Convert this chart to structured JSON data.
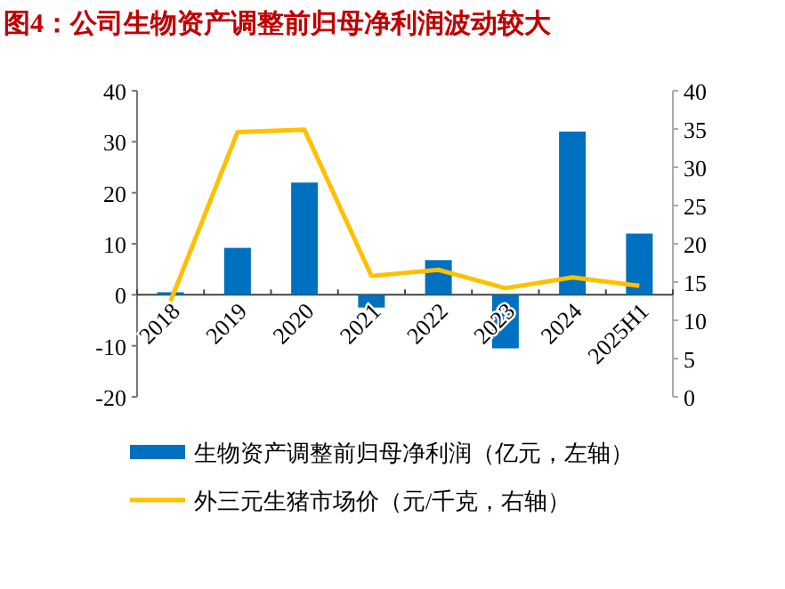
{
  "chart_data": {
    "type": "bar",
    "title": "图4：公司生物资产调整前归母净利润波动较大",
    "categories": [
      "2018",
      "2019",
      "2020",
      "2021",
      "2022",
      "2023",
      "2024",
      "2025H1"
    ],
    "series": [
      {
        "name": "生物资产调整前归母净利润（亿元，左轴）",
        "color": "#0070c0",
        "values": [
          0.5,
          9.2,
          22,
          -2.5,
          6.8,
          -10.5,
          32,
          12
        ]
      },
      {
        "name": "外三元生猪市场价（元/千克，右轴）",
        "type": "line",
        "axis": "y2",
        "color": "#ffc000",
        "values": [
          12.5,
          34.6,
          34.9,
          15.8,
          16.6,
          14.2,
          15.6,
          14.5
        ]
      }
    ],
    "ylim": [
      -20,
      40
    ],
    "yticks": [
      -20,
      -10,
      0,
      10,
      20,
      30,
      40
    ],
    "y2lim": [
      0,
      40
    ],
    "y2ticks": [
      0,
      5,
      10,
      15,
      20,
      25,
      30,
      35,
      40
    ],
    "legend": "bottom"
  }
}
